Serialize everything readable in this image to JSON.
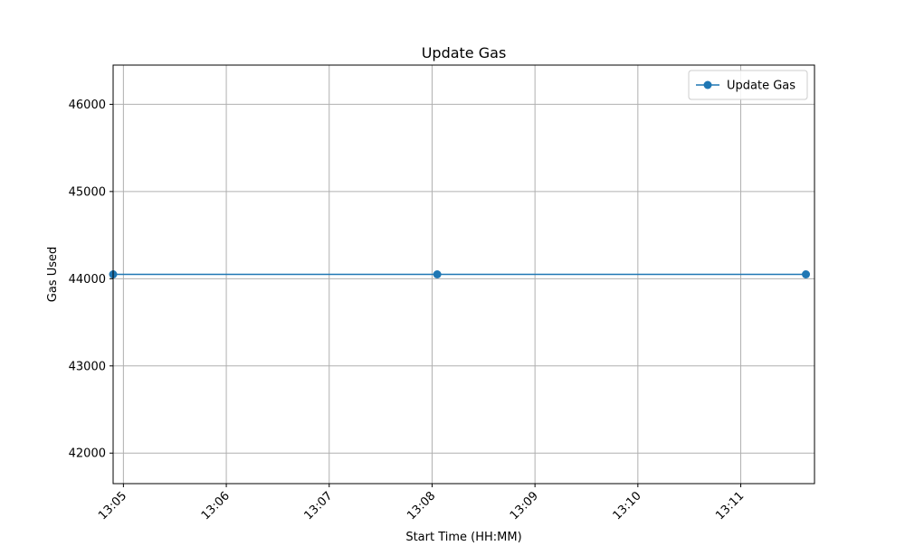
{
  "chart_data": {
    "type": "line",
    "title": "Update Gas",
    "xlabel": "Start Time (HH:MM)",
    "ylabel": "Gas Used",
    "x_ticks": [
      "13:05",
      "13:06",
      "13:07",
      "13:08",
      "13:09",
      "13:10",
      "13:11"
    ],
    "y_ticks": [
      42000,
      43000,
      44000,
      45000,
      46000
    ],
    "xlim": [
      "13:04:54",
      "13:11:43"
    ],
    "ylim": [
      41650,
      46450
    ],
    "grid": true,
    "legend_position": "top-right",
    "series": [
      {
        "name": "Update Gas",
        "color": "#1f77b4",
        "marker": "circle",
        "points": [
          {
            "x": "13:04:54",
            "y": 44050
          },
          {
            "x": "13:08:03",
            "y": 44050
          },
          {
            "x": "13:11:38",
            "y": 44050
          }
        ]
      }
    ]
  }
}
